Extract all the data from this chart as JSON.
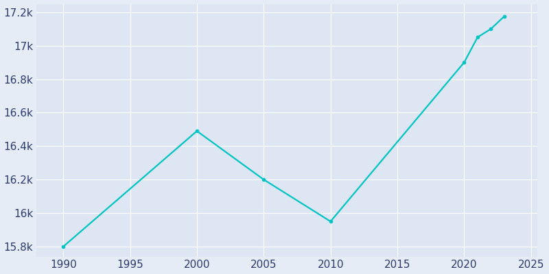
{
  "years": [
    1990,
    2000,
    2005,
    2010,
    2020,
    2021,
    2022,
    2023
  ],
  "population": [
    15800,
    16490,
    16200,
    15950,
    16900,
    17050,
    17100,
    17175
  ],
  "line_color": "#00C4C4",
  "bg_color": "#E5ECF6",
  "plot_bg_color": "#DDE6F2",
  "tick_color": "#2B3A6B",
  "grid_color": "#FFFFFF",
  "xlim": [
    1988,
    2025.5
  ],
  "ylim": [
    15740,
    17250
  ],
  "yticks": [
    15800,
    16000,
    16200,
    16400,
    16600,
    16800,
    17000,
    17200
  ],
  "xticks": [
    1990,
    1995,
    2000,
    2005,
    2010,
    2015,
    2020,
    2025
  ]
}
